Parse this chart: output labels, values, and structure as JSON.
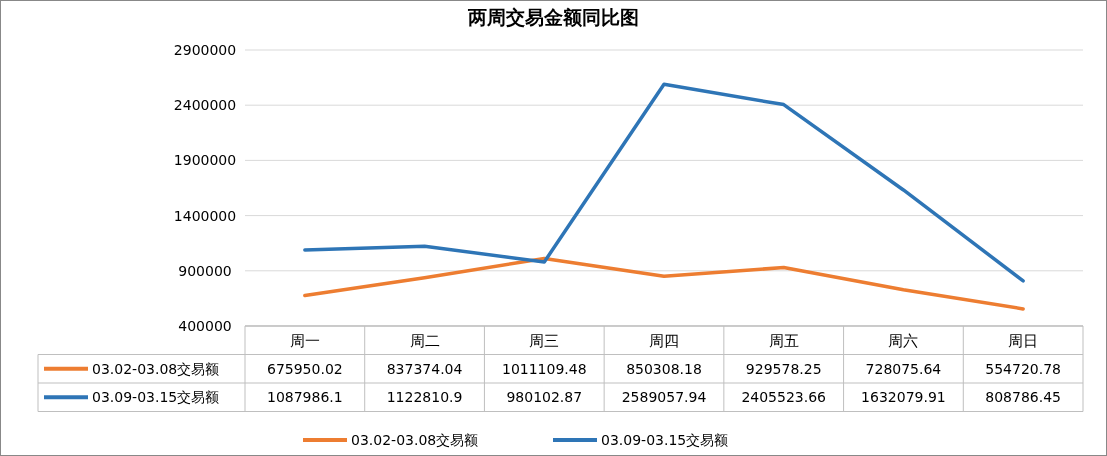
{
  "chart_data": {
    "type": "line",
    "title": "两周交易金额同比图",
    "categories": [
      "周一",
      "周二",
      "周三",
      "周四",
      "周五",
      "周六",
      "周日"
    ],
    "series": [
      {
        "name": "03.02-03.08交易额",
        "color": "#ed7d31",
        "values": [
          675950.02,
          837374.04,
          1011109.48,
          850308.18,
          929578.25,
          728075.64,
          554720.78
        ]
      },
      {
        "name": "03.09-03.15交易额",
        "color": "#2e75b6",
        "values": [
          1087986.1,
          1122810.9,
          980102.87,
          2589057.94,
          2405523.66,
          1632079.91,
          808786.45
        ]
      }
    ],
    "ylim": [
      400000,
      2900000
    ],
    "yticks": [
      400000,
      900000,
      1400000,
      1900000,
      2400000,
      2900000
    ],
    "grid": "y",
    "legend": "bottom",
    "data_labels": true
  }
}
